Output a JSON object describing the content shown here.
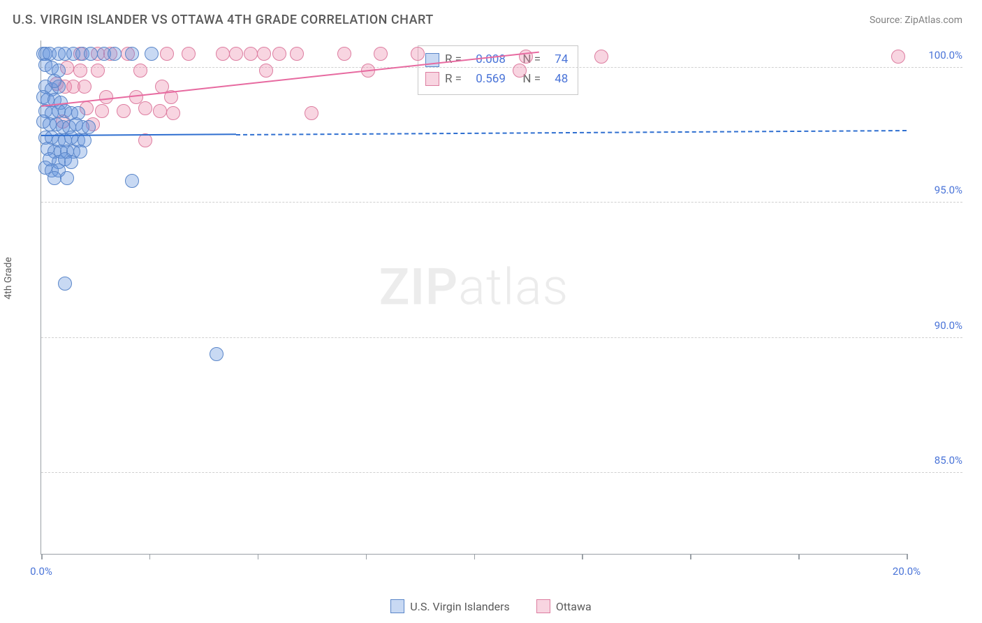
{
  "header": {
    "title": "U.S. VIRGIN ISLANDER VS OTTAWA 4TH GRADE CORRELATION CHART",
    "source": "Source: ZipAtlas.com"
  },
  "axes": {
    "y_label": "4th Grade",
    "x_min": 0.0,
    "x_max": 20.0,
    "y_min": 82.0,
    "y_max": 101.0,
    "y_ticks": [
      85.0,
      90.0,
      95.0,
      100.0
    ],
    "y_tick_labels": [
      "85.0%",
      "90.0%",
      "95.0%",
      "100.0%"
    ],
    "x_ticks": [
      0.0,
      2.5,
      5.0,
      7.5,
      10.0,
      12.5,
      15.0,
      17.5,
      20.0
    ],
    "x_tick_labels_shown": {
      "0.0": "0.0%",
      "20.0": "20.0%"
    }
  },
  "series": {
    "blue": {
      "label": "U.S. Virgin Islanders",
      "fill": "rgba(97,145,222,0.35)",
      "stroke": "#5a86c9",
      "r_value": "0.008",
      "n_value": "74",
      "marker_radius": 10,
      "trend": {
        "x1": 0.0,
        "y1": 97.5,
        "x2": 20.0,
        "y2": 97.7,
        "solid_until_x": 4.5,
        "color": "#2f6fd0",
        "width": 2
      },
      "points": [
        [
          0.05,
          100.5
        ],
        [
          0.1,
          100.5
        ],
        [
          0.2,
          100.5
        ],
        [
          0.4,
          100.5
        ],
        [
          0.55,
          100.5
        ],
        [
          0.75,
          100.5
        ],
        [
          0.95,
          100.5
        ],
        [
          1.15,
          100.5
        ],
        [
          1.45,
          100.5
        ],
        [
          1.7,
          100.5
        ],
        [
          2.1,
          100.5
        ],
        [
          2.55,
          100.5
        ],
        [
          0.1,
          100.1
        ],
        [
          0.25,
          100.0
        ],
        [
          0.4,
          99.9
        ],
        [
          0.1,
          99.3
        ],
        [
          0.25,
          99.2
        ],
        [
          0.4,
          99.3
        ],
        [
          0.3,
          99.5
        ],
        [
          0.05,
          98.9
        ],
        [
          0.15,
          98.8
        ],
        [
          0.3,
          98.8
        ],
        [
          0.45,
          98.7
        ],
        [
          0.1,
          98.4
        ],
        [
          0.25,
          98.3
        ],
        [
          0.4,
          98.4
        ],
        [
          0.55,
          98.4
        ],
        [
          0.7,
          98.3
        ],
        [
          0.85,
          98.3
        ],
        [
          0.05,
          98.0
        ],
        [
          0.2,
          97.9
        ],
        [
          0.35,
          97.9
        ],
        [
          0.5,
          97.8
        ],
        [
          0.65,
          97.8
        ],
        [
          0.8,
          97.9
        ],
        [
          0.95,
          97.8
        ],
        [
          1.1,
          97.8
        ],
        [
          0.1,
          97.4
        ],
        [
          0.25,
          97.4
        ],
        [
          0.4,
          97.3
        ],
        [
          0.55,
          97.3
        ],
        [
          0.7,
          97.4
        ],
        [
          0.85,
          97.3
        ],
        [
          1.0,
          97.3
        ],
        [
          0.15,
          97.0
        ],
        [
          0.3,
          96.9
        ],
        [
          0.45,
          96.9
        ],
        [
          0.6,
          96.9
        ],
        [
          0.75,
          96.9
        ],
        [
          0.9,
          96.9
        ],
        [
          0.2,
          96.6
        ],
        [
          0.4,
          96.5
        ],
        [
          0.55,
          96.6
        ],
        [
          0.7,
          96.5
        ],
        [
          0.1,
          96.3
        ],
        [
          0.25,
          96.2
        ],
        [
          0.4,
          96.2
        ],
        [
          0.3,
          95.9
        ],
        [
          0.6,
          95.9
        ],
        [
          2.1,
          95.8
        ],
        [
          0.55,
          92.0
        ],
        [
          4.05,
          89.4
        ]
      ]
    },
    "pink": {
      "label": "Ottawa",
      "fill": "rgba(236,135,168,0.35)",
      "stroke": "#dd7da0",
      "r_value": "0.569",
      "n_value": "48",
      "marker_radius": 10,
      "trend": {
        "x1": 0.0,
        "y1": 98.6,
        "x2": 11.5,
        "y2": 100.6,
        "color": "#e76aa0",
        "width": 2.5
      },
      "points": [
        [
          0.9,
          100.5
        ],
        [
          1.3,
          100.5
        ],
        [
          1.6,
          100.5
        ],
        [
          2.0,
          100.5
        ],
        [
          2.9,
          100.5
        ],
        [
          3.4,
          100.5
        ],
        [
          4.2,
          100.5
        ],
        [
          4.5,
          100.5
        ],
        [
          4.85,
          100.5
        ],
        [
          5.15,
          100.5
        ],
        [
          5.5,
          100.5
        ],
        [
          5.9,
          100.5
        ],
        [
          7.0,
          100.5
        ],
        [
          7.85,
          100.5
        ],
        [
          8.7,
          100.5
        ],
        [
          11.2,
          100.4
        ],
        [
          12.95,
          100.4
        ],
        [
          19.8,
          100.4
        ],
        [
          0.6,
          100.0
        ],
        [
          0.9,
          99.9
        ],
        [
          1.3,
          99.9
        ],
        [
          2.3,
          99.9
        ],
        [
          5.2,
          99.9
        ],
        [
          7.55,
          99.9
        ],
        [
          11.05,
          99.9
        ],
        [
          0.35,
          99.4
        ],
        [
          0.55,
          99.3
        ],
        [
          0.75,
          99.3
        ],
        [
          1.0,
          99.3
        ],
        [
          2.8,
          99.3
        ],
        [
          1.5,
          98.9
        ],
        [
          2.2,
          98.9
        ],
        [
          3.0,
          98.9
        ],
        [
          1.05,
          98.5
        ],
        [
          1.4,
          98.4
        ],
        [
          1.9,
          98.4
        ],
        [
          2.4,
          98.5
        ],
        [
          2.75,
          98.4
        ],
        [
          3.05,
          98.3
        ],
        [
          0.5,
          98.0
        ],
        [
          1.2,
          97.9
        ],
        [
          6.25,
          98.3
        ],
        [
          2.4,
          97.3
        ]
      ]
    }
  },
  "stats_box": {
    "left_pct": 43.5,
    "top_pct": 1.0
  },
  "watermark": {
    "bold": "ZIP",
    "light": "atlas"
  },
  "colors": {
    "axis": "#9aa0a6",
    "grid": "#d0d0d0",
    "text_muted": "#5a5a5a",
    "value": "#4a74d8"
  }
}
